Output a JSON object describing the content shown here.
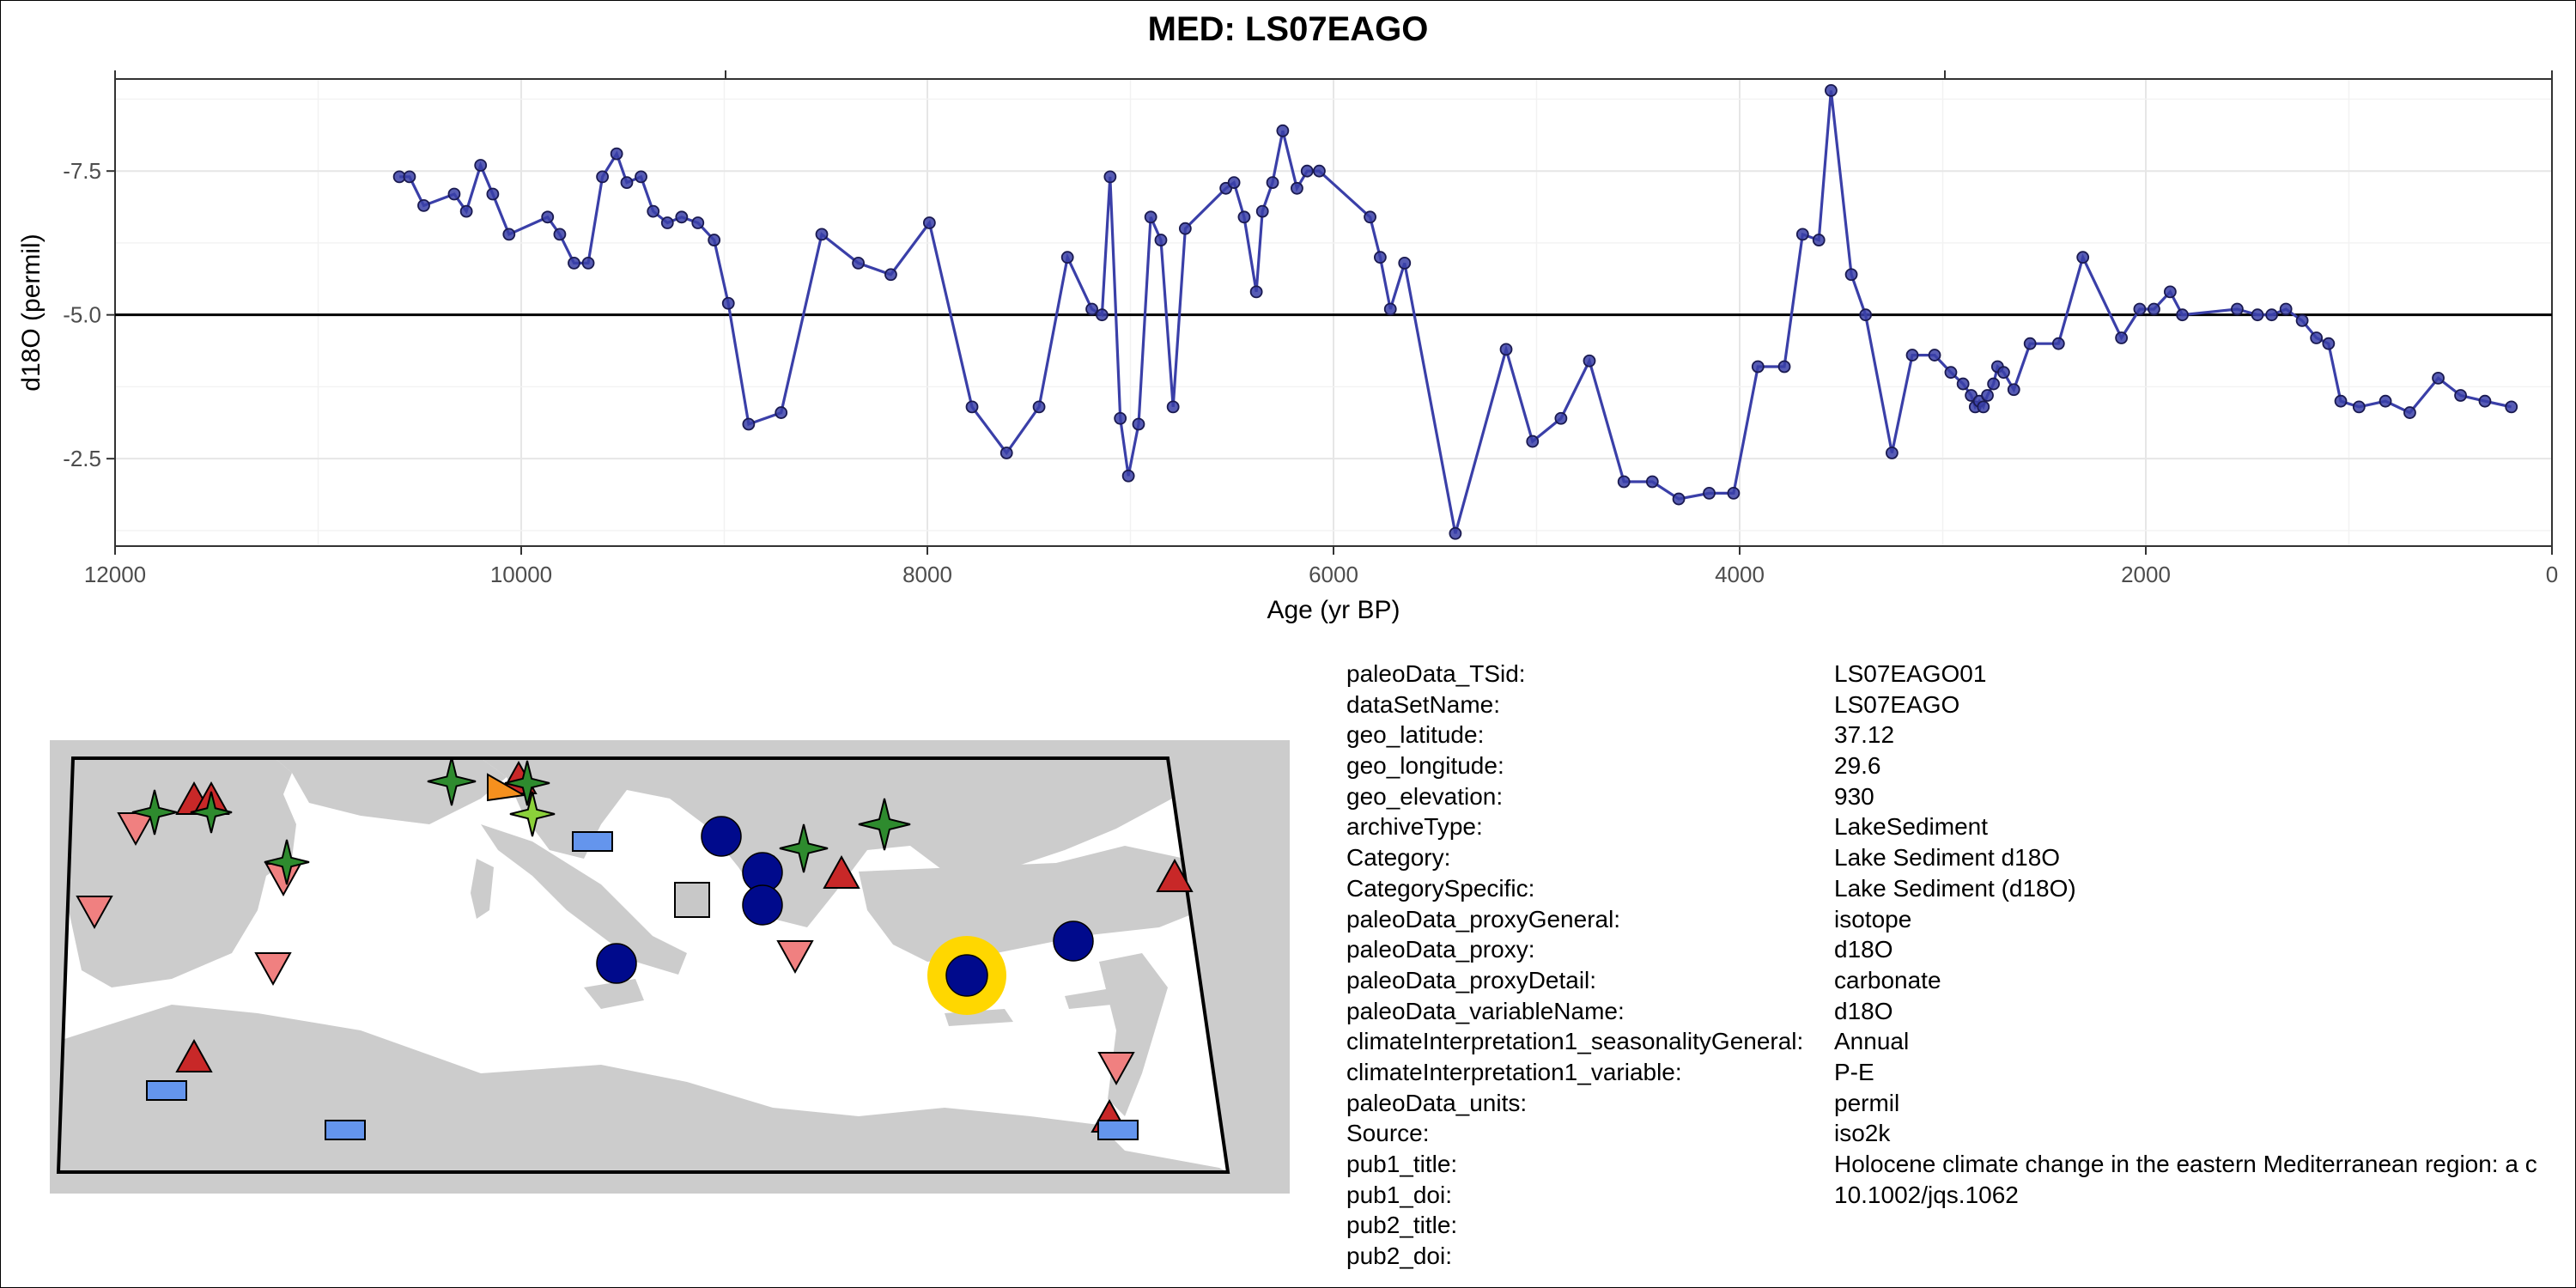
{
  "chart_data": {
    "type": "line",
    "title": "MED: LS07EAGO",
    "xlabel": "Age (yr BP)",
    "ylabel": "d18O (permil)",
    "xlim": [
      12000,
      0
    ],
    "ylim": [
      -0.98,
      -9.1
    ],
    "x_ticks": [
      12000,
      10000,
      8000,
      6000,
      4000,
      2000,
      0
    ],
    "x_tick_labels": [
      "12000",
      "10000",
      "8000",
      "6000",
      "4000",
      "2000",
      "0"
    ],
    "y_ticks": [
      -7.5,
      -5.0,
      -2.5
    ],
    "y_tick_labels": [
      "-7.5",
      "-5.0",
      "-2.5"
    ],
    "reference_line": -5.0,
    "grid": true,
    "series": [
      {
        "color": "#3a3fa8",
        "x": [
          10600,
          10550,
          10480,
          10330,
          10270,
          10200,
          10140,
          10060,
          9870,
          9810,
          9740,
          9670,
          9600,
          9530,
          9480,
          9410,
          9350,
          9280,
          9210,
          9130,
          9050,
          8980,
          8880,
          8720,
          8520,
          8340,
          8180,
          7990,
          7780,
          7610,
          7450,
          7310,
          7190,
          7140,
          7100,
          7050,
          7010,
          6960,
          6900,
          6850,
          6790,
          6730,
          6530,
          6490,
          6440,
          6380,
          6350,
          6300,
          6250,
          6180,
          6130,
          6070,
          5820,
          5770,
          5720,
          5650,
          5400,
          5150,
          5020,
          4880,
          4740,
          4570,
          4430,
          4300,
          4150,
          4030,
          3910,
          3780,
          3690,
          3610,
          3550,
          3450,
          3380,
          3250,
          3150,
          3040,
          2960,
          2900,
          2860,
          2840,
          2820,
          2800,
          2780,
          2750,
          2730,
          2700,
          2650,
          2570,
          2430,
          2310,
          2120,
          2030,
          1960,
          1880,
          1820,
          1550,
          1450,
          1380,
          1310,
          1230,
          1160,
          1100,
          1040,
          950,
          820,
          700,
          560,
          450,
          330,
          200
        ],
        "y": [
          -7.4,
          -7.4,
          -6.9,
          -7.1,
          -6.8,
          -7.6,
          -7.1,
          -6.4,
          -6.7,
          -6.4,
          -5.9,
          -5.9,
          -7.4,
          -7.8,
          -7.3,
          -7.4,
          -6.8,
          -6.6,
          -6.7,
          -6.6,
          -6.3,
          -5.2,
          -3.1,
          -3.3,
          -6.4,
          -5.9,
          -5.7,
          -6.6,
          -3.4,
          -2.6,
          -3.4,
          -6.0,
          -5.1,
          -5.0,
          -7.4,
          -3.2,
          -2.2,
          -3.1,
          -6.7,
          -6.3,
          -3.4,
          -6.5,
          -7.2,
          -7.3,
          -6.7,
          -5.4,
          -6.8,
          -7.3,
          -8.2,
          -7.2,
          -7.5,
          -7.5,
          -6.7,
          -6.0,
          -5.1,
          -5.9,
          -1.2,
          -4.4,
          -2.8,
          -3.2,
          -4.2,
          -2.1,
          -2.1,
          -1.8,
          -1.9,
          -1.9,
          -4.1,
          -4.1,
          -6.4,
          -6.3,
          -8.9,
          -5.7,
          -5.0,
          -2.6,
          -4.3,
          -4.3,
          -4.0,
          -3.8,
          -3.6,
          -3.4,
          -3.5,
          -3.4,
          -3.6,
          -3.8,
          -4.1,
          -4.0,
          -3.7,
          -4.5,
          -4.5,
          -6.0,
          -4.6,
          -5.1,
          -5.1,
          -5.4,
          -5.0,
          -5.1,
          -5.0,
          -5.0,
          -5.1,
          -4.9,
          -4.6,
          -4.5,
          -3.5,
          -3.4,
          -3.5,
          -3.3,
          -3.9,
          -3.6,
          -3.5,
          -3.4
        ]
      }
    ]
  },
  "map": {
    "land_color": "#cccccc",
    "sea_color": "#ffffff",
    "marker_colors": {
      "green_star": "#2e8b2e",
      "light_green_star": "#8bd13a",
      "red_triangle": "#c82828",
      "pink_triangle": "#f08080",
      "orange_triangle": "#f5901e",
      "blue_rect": "#6495ed",
      "navy_circle": "#000a8c",
      "gray_square": "#c8c8c8",
      "highlight_ring": "#ffd700"
    },
    "highlighted_site": "LS07EAGO"
  },
  "metadata": [
    {
      "key": "paleoData_TSid:",
      "value": "LS07EAGO01"
    },
    {
      "key": "dataSetName:",
      "value": "LS07EAGO"
    },
    {
      "key": "geo_latitude:",
      "value": "37.12"
    },
    {
      "key": "geo_longitude:",
      "value": "29.6"
    },
    {
      "key": "geo_elevation:",
      "value": "930"
    },
    {
      "key": "archiveType:",
      "value": "LakeSediment"
    },
    {
      "key": "Category:",
      "value": "Lake Sediment d18O"
    },
    {
      "key": "CategorySpecific:",
      "value": "Lake Sediment (d18O)"
    },
    {
      "key": "paleoData_proxyGeneral:",
      "value": "isotope"
    },
    {
      "key": "paleoData_proxy:",
      "value": "d18O"
    },
    {
      "key": "paleoData_proxyDetail:",
      "value": "carbonate"
    },
    {
      "key": "paleoData_variableName:",
      "value": "d18O"
    },
    {
      "key": "climateInterpretation1_seasonalityGeneral:",
      "value": "Annual"
    },
    {
      "key": "climateInterpretation1_variable:",
      "value": "P-E"
    },
    {
      "key": "paleoData_units:",
      "value": "permil"
    },
    {
      "key": "Source:",
      "value": "iso2k"
    },
    {
      "key": "pub1_title:",
      "value": "Holocene climate change in the eastern Mediterranean region: a c"
    },
    {
      "key": "pub1_doi:",
      "value": "10.1002/jqs.1062"
    },
    {
      "key": "pub2_title:",
      "value": ""
    },
    {
      "key": "pub2_doi:",
      "value": ""
    }
  ]
}
